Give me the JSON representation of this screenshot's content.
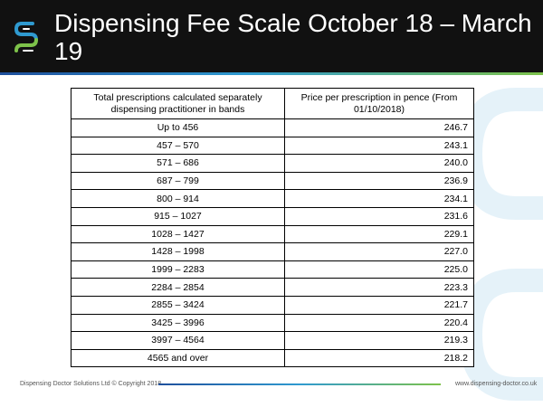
{
  "slide": {
    "title": "Dispensing Fee Scale October 18 – March 19",
    "colors": {
      "header_bg": "#111111",
      "accent_blue": "#1e4f9c",
      "accent_green": "#7dc24a"
    }
  },
  "table": {
    "header": {
      "band": "Total prescriptions calculated separately dispensing practitioner in bands",
      "price": "Price per prescription in pence (From 01/10/2018)"
    },
    "rows": [
      {
        "band": "Up to 456",
        "price": "246.7"
      },
      {
        "band": "457 – 570",
        "price": "243.1"
      },
      {
        "band": "571 – 686",
        "price": "240.0"
      },
      {
        "band": "687 – 799",
        "price": "236.9"
      },
      {
        "band": "800 – 914",
        "price": "234.1"
      },
      {
        "band": "915 – 1027",
        "price": "231.6"
      },
      {
        "band": "1028 – 1427",
        "price": "229.1"
      },
      {
        "band": "1428 – 1998",
        "price": "227.0"
      },
      {
        "band": "1999 – 2283",
        "price": "225.0"
      },
      {
        "band": "2284 – 2854",
        "price": "223.3"
      },
      {
        "band": "2855 – 3424",
        "price": "221.7"
      },
      {
        "band": "3425 – 3996",
        "price": "220.4"
      },
      {
        "band": "3997 – 4564",
        "price": "219.3"
      },
      {
        "band": "4565 and over",
        "price": "218.2"
      }
    ]
  },
  "footer": {
    "copyright": "Dispensing Doctor Solutions Ltd © Copyright 2018",
    "website": "www.dispensing-doctor.co.uk"
  },
  "icons": {
    "logo": "dds-logo-icon",
    "watermark": "dds-watermark-icon"
  }
}
